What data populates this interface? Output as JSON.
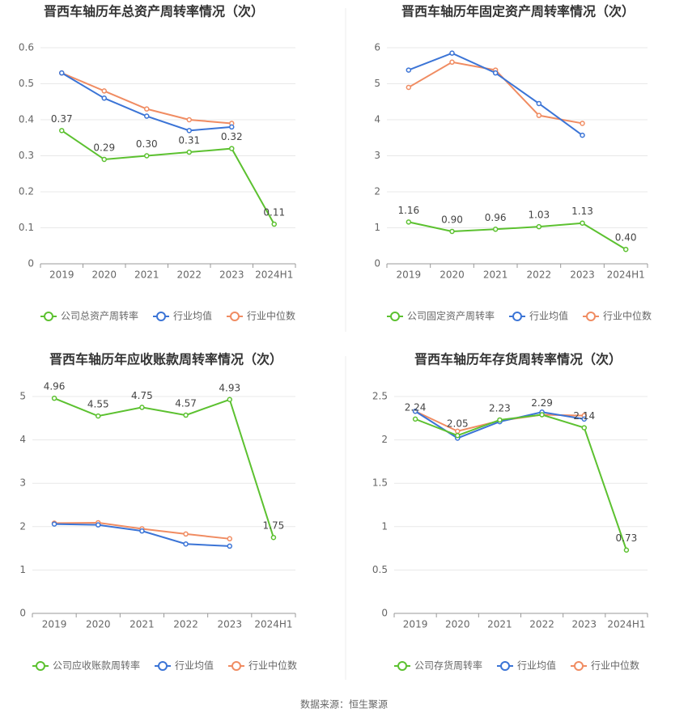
{
  "chart_data": [
    {
      "type": "line",
      "title": "晋西车轴历年总资产周转率情况（次）",
      "categories": [
        "2019",
        "2020",
        "2021",
        "2022",
        "2023",
        "2024H1"
      ],
      "ylim": [
        0,
        0.6
      ],
      "yticks": [
        0,
        0.1,
        0.2,
        0.3,
        0.4,
        0.5,
        0.6
      ],
      "grid": true,
      "series": [
        {
          "name": "公司总资产周转率",
          "color": "#5cc130",
          "values": [
            0.37,
            0.29,
            0.3,
            0.31,
            0.32,
            0.11
          ],
          "value_labels": [
            "0.37",
            "0.29",
            "0.30",
            "0.31",
            "0.32",
            "0.11"
          ]
        },
        {
          "name": "行业均值",
          "color": "#3b74d6",
          "values": [
            0.53,
            0.46,
            0.41,
            0.37,
            0.38,
            null
          ]
        },
        {
          "name": "行业中位数",
          "color": "#f08c62",
          "values": [
            0.53,
            0.48,
            0.43,
            0.4,
            0.39,
            null
          ]
        }
      ]
    },
    {
      "type": "line",
      "title": "晋西车轴历年固定资产周转率情况（次）",
      "categories": [
        "2019",
        "2020",
        "2021",
        "2022",
        "2023",
        "2024H1"
      ],
      "ylim": [
        0,
        6
      ],
      "yticks": [
        0,
        1,
        2,
        3,
        4,
        5,
        6
      ],
      "grid": true,
      "series": [
        {
          "name": "公司固定资产周转率",
          "color": "#5cc130",
          "values": [
            1.16,
            0.9,
            0.96,
            1.03,
            1.13,
            0.4
          ],
          "value_labels": [
            "1.16",
            "0.90",
            "0.96",
            "1.03",
            "1.13",
            "0.40"
          ]
        },
        {
          "name": "行业均值",
          "color": "#3b74d6",
          "values": [
            5.38,
            5.85,
            5.3,
            4.45,
            3.57,
            null
          ]
        },
        {
          "name": "行业中位数",
          "color": "#f08c62",
          "values": [
            4.9,
            5.6,
            5.38,
            4.12,
            3.9,
            null
          ]
        }
      ]
    },
    {
      "type": "line",
      "title": "晋西车轴历年应收账款周转率情况（次）",
      "categories": [
        "2019",
        "2020",
        "2021",
        "2022",
        "2023",
        "2024H1"
      ],
      "ylim": [
        0,
        5
      ],
      "yticks": [
        0,
        1,
        2,
        3,
        4,
        5
      ],
      "grid": true,
      "series": [
        {
          "name": "公司应收账款周转率",
          "color": "#5cc130",
          "values": [
            4.96,
            4.55,
            4.75,
            4.57,
            4.93,
            1.75
          ],
          "value_labels": [
            "4.96",
            "4.55",
            "4.75",
            "4.57",
            "4.93",
            "1.75"
          ]
        },
        {
          "name": "行业均值",
          "color": "#3b74d6",
          "values": [
            2.06,
            2.04,
            1.9,
            1.6,
            1.55,
            null
          ]
        },
        {
          "name": "行业中位数",
          "color": "#f08c62",
          "values": [
            2.08,
            2.09,
            1.95,
            1.83,
            1.72,
            null
          ]
        }
      ]
    },
    {
      "type": "line",
      "title": "晋西车轴历年存货周转率情况（次）",
      "categories": [
        "2019",
        "2020",
        "2021",
        "2022",
        "2023",
        "2024H1"
      ],
      "ylim": [
        0,
        2.5
      ],
      "yticks": [
        0,
        0.5,
        1,
        1.5,
        2,
        2.5
      ],
      "grid": true,
      "series": [
        {
          "name": "公司存货周转率",
          "color": "#5cc130",
          "values": [
            2.24,
            2.05,
            2.23,
            2.29,
            2.14,
            0.73
          ],
          "value_labels": [
            "2.24",
            "2.05",
            "2.23",
            "2.29",
            "2.14",
            "0.73"
          ]
        },
        {
          "name": "行业均值",
          "color": "#3b74d6",
          "values": [
            2.33,
            2.02,
            2.21,
            2.32,
            2.24,
            null
          ]
        },
        {
          "name": "行业中位数",
          "color": "#f08c62",
          "values": [
            2.33,
            2.1,
            2.22,
            2.29,
            2.28,
            null
          ]
        }
      ]
    }
  ],
  "source": "数据来源：恒生聚源"
}
